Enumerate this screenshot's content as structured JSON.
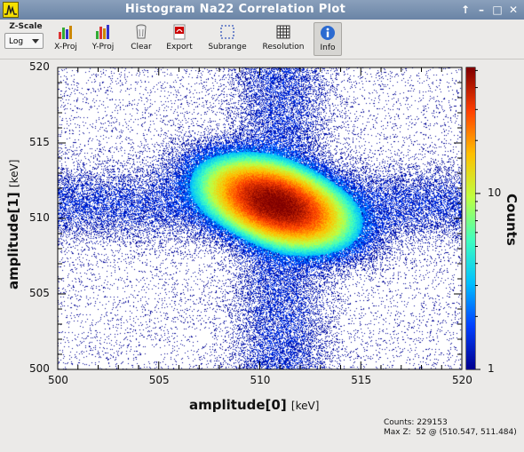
{
  "window": {
    "title": "Histogram Na22 Correlation Plot",
    "controls": {
      "pin": "↑",
      "minimize": "–",
      "maximize": "□",
      "close": "✕"
    }
  },
  "toolbar": {
    "zscale_label": "Z-Scale",
    "zscale_value": "Log",
    "buttons": [
      {
        "id": "xproj",
        "label": "X-Proj",
        "icon": "x-projection-icon"
      },
      {
        "id": "yproj",
        "label": "Y-Proj",
        "icon": "y-projection-icon"
      },
      {
        "id": "clear",
        "label": "Clear",
        "icon": "clear-icon"
      },
      {
        "id": "export",
        "label": "Export",
        "icon": "export-icon"
      },
      {
        "id": "subrange",
        "label": "Subrange",
        "icon": "subrange-icon"
      },
      {
        "id": "resolution",
        "label": "Resolution",
        "icon": "resolution-icon"
      },
      {
        "id": "info",
        "label": "Info",
        "icon": "info-icon",
        "active": true
      }
    ]
  },
  "chart_data": {
    "type": "heatmap",
    "x_label": "amplitude[0]",
    "x_unit": "[keV]",
    "y_label": "amplitude[1]",
    "y_unit": "[keV]",
    "z_label": "Counts",
    "xlim": [
      500,
      520
    ],
    "ylim": [
      500,
      520
    ],
    "x_ticks": [
      500,
      505,
      510,
      515,
      520
    ],
    "y_ticks": [
      500,
      505,
      510,
      515,
      520
    ],
    "z_scale": "log",
    "z_ticks": [
      1,
      10
    ],
    "zlim": [
      1,
      52
    ],
    "colormap": [
      "#00008f",
      "#0040ff",
      "#00c0ff",
      "#40ffbf",
      "#c0ff40",
      "#ffc000",
      "#ff4000",
      "#800000"
    ],
    "distribution": {
      "center": [
        510.8,
        511.0
      ],
      "sigma_major": 1.9,
      "sigma_minor": 1.15,
      "angle_deg": -32,
      "peak": 52
    }
  },
  "stats": {
    "counts_label": "Counts:",
    "counts_value": "229153",
    "maxz_label": "Max Z:",
    "maxz_value": "52 @ (510.547, 511.484)"
  }
}
